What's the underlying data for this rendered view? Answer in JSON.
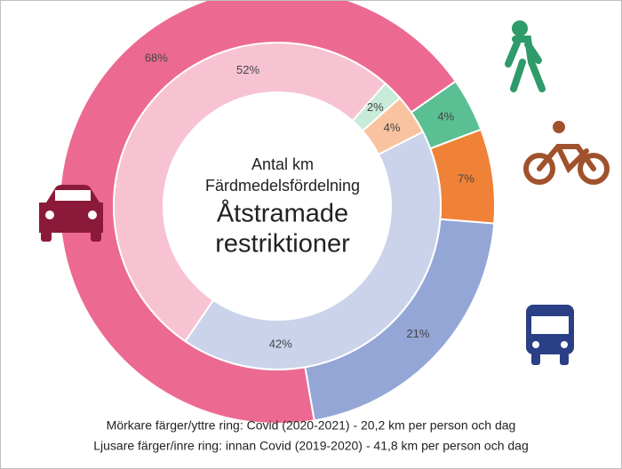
{
  "chart_data": {
    "type": "donut",
    "title": [
      "Antal km",
      "Färdmedelsfördelning"
    ],
    "subtitle": [
      "Åtstramade",
      "restriktioner"
    ],
    "notes": [
      "Mörkare färger/yttre ring: Covid (2020-2021) - 20,2 km per person och dag",
      "Ljusare färger/inre ring: innan Covid (2019-2020) - 41,8 km per person och dag"
    ],
    "series": [
      {
        "values": [
          4,
          7,
          21,
          68
        ],
        "value_labels": [
          "4%",
          "7%",
          "21%",
          "68%"
        ],
        "colors": [
          "#5bbf94",
          "#ef8236",
          "#93a6d6",
          "#ec6a92"
        ]
      },
      {
        "values": [
          2,
          4,
          42,
          52
        ],
        "value_labels": [
          "2%",
          "4%",
          "42%",
          "52%"
        ],
        "colors": [
          "#c7ebd8",
          "#f9c3a0",
          "#cbd3ea",
          "#f7c3d3"
        ]
      }
    ]
  }
}
